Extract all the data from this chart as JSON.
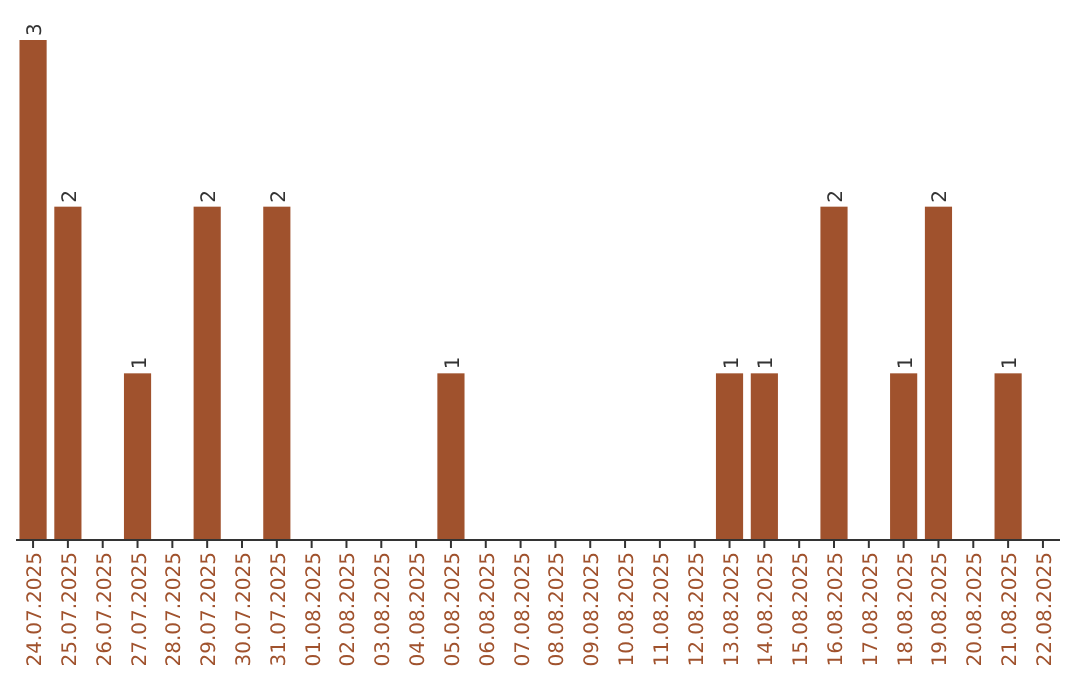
{
  "chart_data": {
    "type": "bar",
    "categories": [
      "24.07.2025",
      "25.07.2025",
      "26.07.2025",
      "27.07.2025",
      "28.07.2025",
      "29.07.2025",
      "30.07.2025",
      "31.07.2025",
      "01.08.2025",
      "02.08.2025",
      "03.08.2025",
      "04.08.2025",
      "05.08.2025",
      "06.08.2025",
      "07.08.2025",
      "08.08.2025",
      "09.08.2025",
      "10.08.2025",
      "11.08.2025",
      "12.08.2025",
      "13.08.2025",
      "14.08.2025",
      "15.08.2025",
      "16.08.2025",
      "17.08.2025",
      "18.08.2025",
      "19.08.2025",
      "20.08.2025",
      "21.08.2025",
      "22.08.2025"
    ],
    "values": [
      3,
      2,
      0,
      1,
      0,
      2,
      0,
      2,
      0,
      0,
      0,
      0,
      1,
      0,
      0,
      0,
      0,
      0,
      0,
      0,
      1,
      1,
      0,
      2,
      0,
      1,
      2,
      0,
      1,
      0
    ],
    "value_labels": [
      "3",
      "2",
      null,
      "1",
      null,
      "2",
      null,
      "2",
      null,
      null,
      null,
      null,
      "1",
      null,
      null,
      null,
      null,
      null,
      null,
      null,
      "1",
      "1",
      null,
      "2",
      null,
      "1",
      "2",
      null,
      "1",
      null
    ],
    "color": "#a0522d"
  }
}
